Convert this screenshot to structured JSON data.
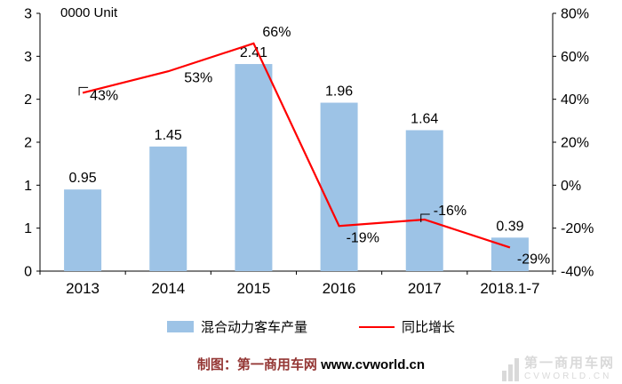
{
  "chart": {
    "unit_label": "0000 Unit",
    "legend": {
      "bar": "混合动力客车产量",
      "line": "同比增长"
    },
    "footer": {
      "prefix": "制图：第一商用车网 ",
      "url": "www.cvworld.cn"
    },
    "watermark": {
      "line1": "第一商用车网",
      "line2": "CVWORLD.CN"
    },
    "colors": {
      "bar": "#9DC3E6",
      "line": "#FF0000",
      "footer_prefix": "#943634",
      "axis": "#000000",
      "watermark": "#D9D9D9"
    }
  },
  "chart_data": {
    "type": "combo-bar-line",
    "categories": [
      "2013",
      "2014",
      "2015",
      "2016",
      "2017",
      "2018.1-7"
    ],
    "series": [
      {
        "name": "混合动力客车产量",
        "type": "bar",
        "axis": "left",
        "values": [
          0.95,
          1.45,
          2.41,
          1.96,
          1.64,
          0.39
        ],
        "labels": [
          "0.95",
          "1.45",
          "2.41",
          "1.96",
          "1.64",
          "0.39"
        ],
        "color": "#9DC3E6"
      },
      {
        "name": "同比增长",
        "type": "line",
        "axis": "right",
        "values": [
          43,
          53,
          66,
          -19,
          -16,
          -29
        ],
        "labels": [
          "43%",
          "53%",
          "66%",
          "-19%",
          "-16%",
          "-29%"
        ],
        "color": "#FF0000"
      }
    ],
    "left_axis": {
      "title": "0000 Unit",
      "min": 0,
      "max": 3,
      "tick_labels": [
        "3",
        "3",
        "2",
        "2",
        "1",
        "1",
        "0"
      ]
    },
    "right_axis": {
      "min": -40,
      "max": 80,
      "tick_labels": [
        "80%",
        "60%",
        "40%",
        "20%",
        "0%",
        "-20%",
        "-40%"
      ]
    },
    "grid": false,
    "legend_position": "bottom"
  }
}
